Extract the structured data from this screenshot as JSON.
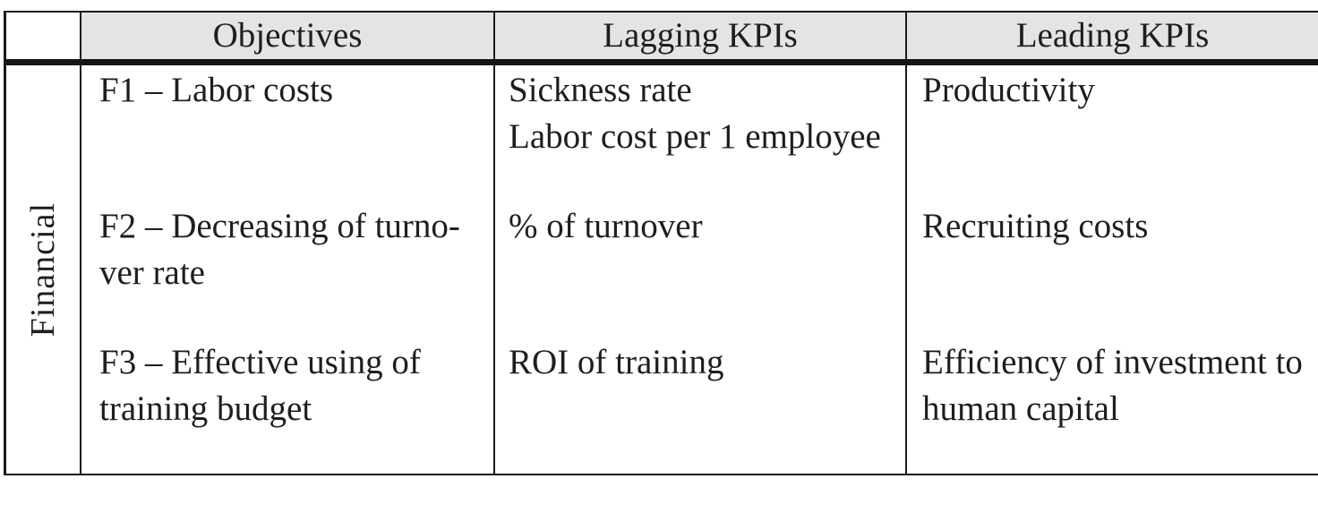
{
  "colors": {
    "header_bg": "#e4e4e6",
    "border": "#1a1a1a",
    "text": "#1e1e1e"
  },
  "table": {
    "header": {
      "corner": "",
      "columns": [
        "Objectives",
        "Lagging KPIs",
        "Leading KPIs"
      ]
    },
    "perspective": "Financial",
    "rows": [
      {
        "objective": {
          "lines": [
            "F1 – Labor costs"
          ]
        },
        "lagging": {
          "lines": [
            "Sickness rate",
            "Labor cost per 1 employee"
          ]
        },
        "leading": {
          "lines": [
            "Productivity"
          ]
        }
      },
      {
        "objective": {
          "lines": [
            "F2 – Decreasing of turno-",
            "ver rate"
          ]
        },
        "lagging": {
          "lines": [
            "% of turnover"
          ]
        },
        "leading": {
          "lines": [
            "Recruiting costs"
          ]
        }
      },
      {
        "objective": {
          "lines": [
            "F3 – Effective using of",
            "training budget"
          ]
        },
        "lagging": {
          "lines": [
            "ROI of training"
          ]
        },
        "leading": {
          "lines": [
            "Efficiency of investment to",
            "human capital"
          ]
        }
      }
    ]
  }
}
